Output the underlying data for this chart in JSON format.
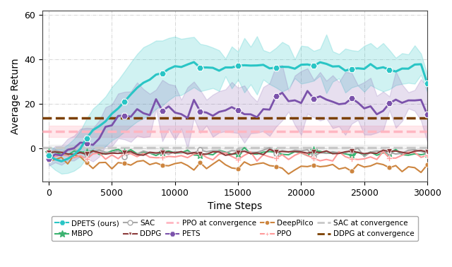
{
  "title": "",
  "xlabel": "Time Steps",
  "ylabel": "Average Return",
  "xlim": [
    -500,
    30000
  ],
  "ylim": [
    -15,
    62
  ],
  "yticks": [
    0,
    20,
    40,
    60
  ],
  "xticks": [
    0,
    5000,
    10000,
    15000,
    20000,
    25000,
    30000
  ],
  "colors": {
    "DPETS": "#29C5C5",
    "PETS": "#7B52AB",
    "MBPO": "#3CB371",
    "DeepPilco": "#CD853F",
    "SAC": "#A9A9A9",
    "PPO": "#FF9999",
    "DDPG": "#8B3A3A",
    "PPO_conv": "#FFB6C1",
    "SAC_conv": "#C8C8C8",
    "DDPG_conv": "#7B3F00"
  },
  "ppo_conv": 7.5,
  "sac_conv": 0.2,
  "ddpg_conv": 13.5,
  "background": "#FFFFFF",
  "grid_color": "#BBBBBB"
}
